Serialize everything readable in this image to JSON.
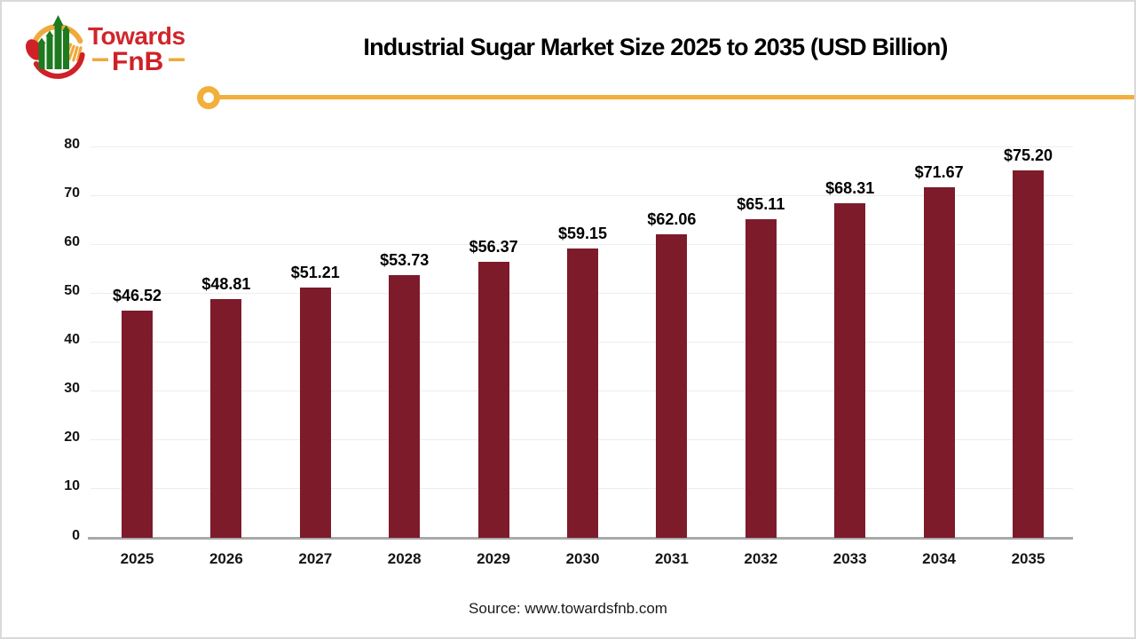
{
  "logo": {
    "word_top": "Towards",
    "word_bottom": "FnB",
    "red": "#cf2127",
    "yellow": "#f0a93c",
    "green": "#1e7a1f"
  },
  "header": {
    "title": "Industrial Sugar Market Size 2025 to 2035 (USD Billion)"
  },
  "divider": {
    "color": "#f3af3b"
  },
  "chart_data": {
    "type": "bar",
    "title": "Industrial Sugar Market Size 2025 to 2035 (USD Billion)",
    "categories": [
      "2025",
      "2026",
      "2027",
      "2028",
      "2029",
      "2030",
      "2031",
      "2032",
      "2033",
      "2034",
      "2035"
    ],
    "values": [
      46.52,
      48.81,
      51.21,
      53.73,
      56.37,
      59.15,
      62.06,
      65.11,
      68.31,
      71.67,
      75.2
    ],
    "value_labels": [
      "$46.52",
      "$48.81",
      "$51.21",
      "$53.73",
      "$56.37",
      "$59.15",
      "$62.06",
      "$65.11",
      "$68.31",
      "$71.67",
      "$75.20"
    ],
    "xlabel": "",
    "ylabel": "",
    "ylim": [
      0,
      80
    ],
    "yticks": [
      0,
      10,
      20,
      30,
      40,
      50,
      60,
      70,
      80
    ],
    "grid": true,
    "legend_position": "none",
    "bar_color": "#7d1b2b",
    "gridline_color": "#ededed",
    "axis_color": "#a9a9a9"
  },
  "footer": {
    "source": "Source: www.towardsfnb.com"
  }
}
